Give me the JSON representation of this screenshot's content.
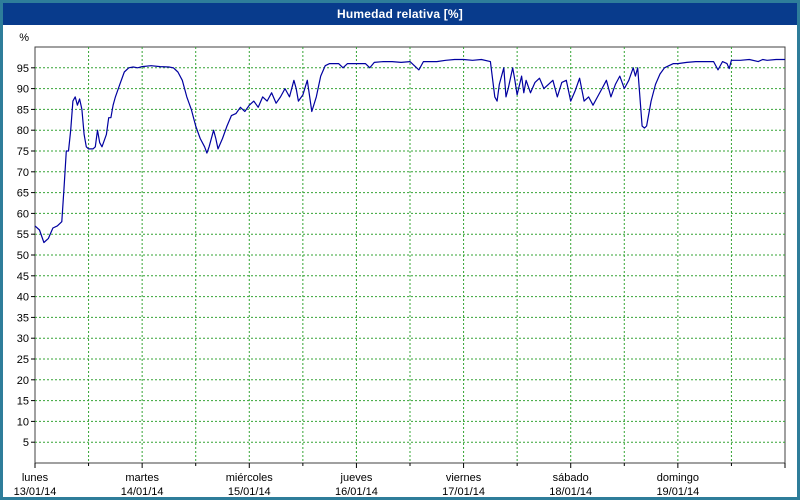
{
  "title": "Humedad relativa [%]",
  "chart_data": {
    "type": "line",
    "title": "Humedad relativa [%]",
    "xlabel": "",
    "ylabel": "%",
    "ylim": [
      0,
      100
    ],
    "xlim": [
      0,
      168
    ],
    "x_unit": "hours_from_monday_00h",
    "x_gridline_every_hours": 12,
    "grid": true,
    "legend": false,
    "y_tick_labels": [
      5,
      10,
      15,
      20,
      25,
      30,
      35,
      40,
      45,
      50,
      55,
      60,
      65,
      70,
      75,
      80,
      85,
      90,
      95
    ],
    "x_labels": [
      {
        "name": "lunes",
        "date": "13/01/14"
      },
      {
        "name": "martes",
        "date": "14/01/14"
      },
      {
        "name": "miércoles",
        "date": "15/01/14"
      },
      {
        "name": "jueves",
        "date": "16/01/14"
      },
      {
        "name": "viernes",
        "date": "17/01/14"
      },
      {
        "name": "sábado",
        "date": "18/01/14"
      },
      {
        "name": "domingo",
        "date": "19/01/14"
      }
    ],
    "colors": {
      "titlebar": "#083b8c",
      "border": "#2e7d9a",
      "grid": "#35a435",
      "axis": "#404040",
      "line": "#0000a0",
      "plot_bg": "#ffffff"
    },
    "series": [
      {
        "name": "Humedad relativa",
        "color": "#0000a0",
        "points": [
          [
            0,
            57
          ],
          [
            1,
            56
          ],
          [
            2,
            53
          ],
          [
            3,
            54
          ],
          [
            4,
            56.5
          ],
          [
            5,
            57
          ],
          [
            6,
            58
          ],
          [
            6.5,
            66
          ],
          [
            7,
            75
          ],
          [
            7.5,
            75
          ],
          [
            8,
            80
          ],
          [
            8.5,
            87
          ],
          [
            9,
            88
          ],
          [
            9.5,
            86
          ],
          [
            10,
            87.5
          ],
          [
            10.5,
            85
          ],
          [
            11,
            79
          ],
          [
            11.5,
            76
          ],
          [
            12,
            75.5
          ],
          [
            13,
            75.5
          ],
          [
            13.5,
            76
          ],
          [
            14,
            80
          ],
          [
            14.5,
            77
          ],
          [
            15,
            76
          ],
          [
            16,
            79
          ],
          [
            16.5,
            83
          ],
          [
            17,
            83
          ],
          [
            17.5,
            86
          ],
          [
            18,
            88
          ],
          [
            19,
            91
          ],
          [
            20,
            94
          ],
          [
            21,
            95
          ],
          [
            22,
            95.2
          ],
          [
            23,
            95
          ],
          [
            24,
            95.3
          ],
          [
            26,
            95.5
          ],
          [
            28,
            95.3
          ],
          [
            30,
            95.2
          ],
          [
            31,
            95
          ],
          [
            32,
            94
          ],
          [
            33,
            92
          ],
          [
            34,
            88
          ],
          [
            35,
            85
          ],
          [
            36,
            81
          ],
          [
            37,
            78
          ],
          [
            38,
            76
          ],
          [
            38.5,
            74.5
          ],
          [
            39,
            76
          ],
          [
            40,
            80
          ],
          [
            40.5,
            78
          ],
          [
            41,
            75.5
          ],
          [
            42,
            78
          ],
          [
            43,
            81
          ],
          [
            44,
            83.5
          ],
          [
            45,
            84
          ],
          [
            46,
            85.5
          ],
          [
            47,
            84.5
          ],
          [
            48,
            86
          ],
          [
            49,
            87
          ],
          [
            50,
            85.5
          ],
          [
            51,
            88
          ],
          [
            52,
            87
          ],
          [
            53,
            89
          ],
          [
            54,
            86.5
          ],
          [
            55,
            88
          ],
          [
            56,
            90
          ],
          [
            57,
            88
          ],
          [
            58,
            92
          ],
          [
            58.5,
            90
          ],
          [
            59,
            87
          ],
          [
            60,
            88.5
          ],
          [
            61,
            92
          ],
          [
            62,
            84.5
          ],
          [
            63,
            88
          ],
          [
            64,
            93
          ],
          [
            65,
            95.5
          ],
          [
            66,
            96
          ],
          [
            68,
            96
          ],
          [
            69,
            95
          ],
          [
            70,
            96
          ],
          [
            72,
            96
          ],
          [
            74,
            96
          ],
          [
            75,
            95
          ],
          [
            76,
            96.3
          ],
          [
            78,
            96.5
          ],
          [
            80,
            96.5
          ],
          [
            82,
            96.3
          ],
          [
            84,
            96.5
          ],
          [
            86,
            94.5
          ],
          [
            87,
            96.5
          ],
          [
            90,
            96.5
          ],
          [
            92,
            96.8
          ],
          [
            94,
            97
          ],
          [
            96,
            97
          ],
          [
            98,
            96.8
          ],
          [
            100,
            97
          ],
          [
            102,
            96.5
          ],
          [
            103,
            88
          ],
          [
            103.5,
            87
          ],
          [
            104,
            91
          ],
          [
            105,
            95
          ],
          [
            105.5,
            88
          ],
          [
            106,
            90
          ],
          [
            107,
            95
          ],
          [
            107.5,
            92
          ],
          [
            108,
            88.5
          ],
          [
            109,
            93
          ],
          [
            109.5,
            89
          ],
          [
            110,
            92
          ],
          [
            111,
            89
          ],
          [
            112,
            91.5
          ],
          [
            113,
            92.5
          ],
          [
            114,
            90
          ],
          [
            115,
            91
          ],
          [
            116,
            92
          ],
          [
            117,
            88
          ],
          [
            118,
            91.5
          ],
          [
            119,
            92
          ],
          [
            120,
            87
          ],
          [
            121,
            89.5
          ],
          [
            122,
            92.5
          ],
          [
            123,
            87
          ],
          [
            124,
            88
          ],
          [
            125,
            86
          ],
          [
            126,
            88
          ],
          [
            127,
            90
          ],
          [
            128,
            92
          ],
          [
            129,
            88
          ],
          [
            130,
            91
          ],
          [
            131,
            93
          ],
          [
            132,
            90
          ],
          [
            133,
            92
          ],
          [
            134,
            95
          ],
          [
            134.5,
            93
          ],
          [
            135,
            95
          ],
          [
            135.5,
            88
          ],
          [
            136,
            81
          ],
          [
            136.5,
            80.5
          ],
          [
            137,
            81
          ],
          [
            138,
            87
          ],
          [
            139,
            91
          ],
          [
            140,
            93.5
          ],
          [
            141,
            95
          ],
          [
            142,
            95.5
          ],
          [
            143,
            96
          ],
          [
            144,
            96
          ],
          [
            146,
            96.3
          ],
          [
            148,
            96.5
          ],
          [
            150,
            96.5
          ],
          [
            152,
            96.5
          ],
          [
            153,
            94.5
          ],
          [
            154,
            96.5
          ],
          [
            155,
            96
          ],
          [
            155.5,
            94.8
          ],
          [
            156,
            96.8
          ],
          [
            158,
            96.8
          ],
          [
            160,
            97
          ],
          [
            162,
            96.5
          ],
          [
            163,
            97
          ],
          [
            164,
            96.8
          ],
          [
            166,
            97
          ],
          [
            168,
            97
          ]
        ]
      }
    ]
  }
}
